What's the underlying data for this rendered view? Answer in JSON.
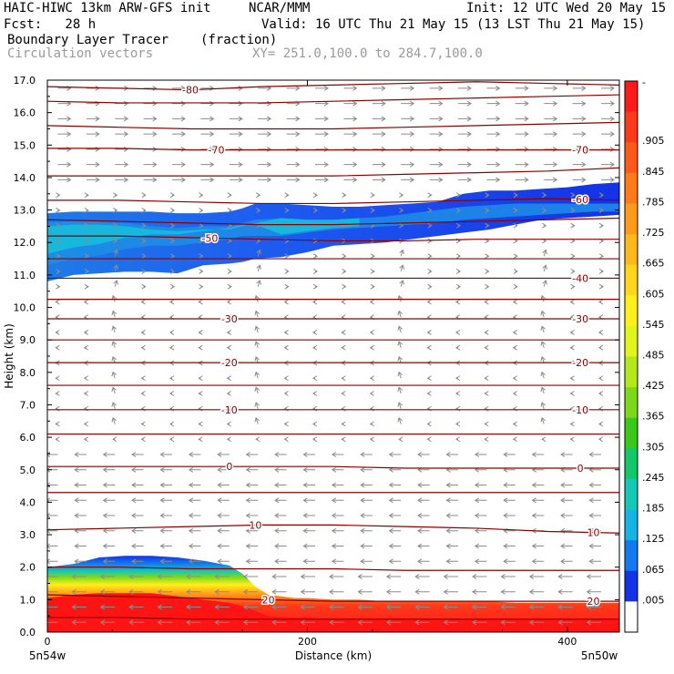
{
  "header": {
    "model": "HAIC-HIWC 13km ARW-GFS init",
    "org": "NCAR/MMM",
    "init": "Init: 12 UTC Wed 20 May 15",
    "fcst": "Fcst:   28 h",
    "valid": "Valid: 16 UTC Thu 21 May 15 (13 LST Thu 21 May 15)",
    "field1": "Boundary Layer Tracer",
    "field1_units": "(fraction)",
    "field2": "Circulation vectors",
    "xy": "XY= 251.0,100.0 to 284.7,100.0"
  },
  "chart_data": {
    "type": "heatmap",
    "ylabel": "Height (km)",
    "xlabel": "Distance (km)",
    "ylim": [
      0,
      17
    ],
    "xlim": [
      0,
      440
    ],
    "yticks": [
      "0.0",
      "1.0",
      "2.0",
      "3.0",
      "4.0",
      "5.0",
      "6.0",
      "7.0",
      "8.0",
      "9.0",
      "10.0",
      "11.0",
      "12.0",
      "13.0",
      "14.0",
      "15.0",
      "16.0",
      "17.0"
    ],
    "xticks": [
      "0",
      "200",
      "400"
    ],
    "x_end_labels": [
      "5n54w",
      "5n50w"
    ],
    "colorbar": {
      "labels": [
        "-",
        ".905",
        ".845",
        ".785",
        ".725",
        ".665",
        ".605",
        ".545",
        ".485",
        ".425",
        ".365",
        ".305",
        ".245",
        ".185",
        ".125",
        ".065",
        ".005"
      ],
      "colors": [
        "#ff1a1a",
        "#ff3a1a",
        "#ff5a1a",
        "#ff7a1a",
        "#ff9a1a",
        "#ffb91a",
        "#ffd71a",
        "#fff01a",
        "#e2f51a",
        "#b4e81a",
        "#7ed81a",
        "#3ac81a",
        "#14c86a",
        "#14c8b4",
        "#14b4e6",
        "#1478f0",
        "#1432e6",
        "#ffffff"
      ]
    },
    "contours": {
      "color": "#8b0000",
      "lines": [
        {
          "label": "-80",
          "z": [
            16.8,
            16.75,
            16.7,
            16.8,
            16.85,
            16.9,
            16.95,
            16.9,
            16.85
          ]
        },
        {
          "label": "",
          "z": [
            16.35,
            16.3,
            16.3,
            16.3,
            16.35,
            16.4,
            16.45,
            16.5,
            16.55
          ]
        },
        {
          "label": "",
          "z": [
            15.6,
            15.55,
            15.5,
            15.5,
            15.5,
            15.55,
            15.6,
            15.65,
            15.7
          ]
        },
        {
          "label": "-70",
          "z": [
            14.9,
            14.9,
            14.85,
            14.85,
            14.85,
            14.85,
            14.85,
            14.85,
            14.85
          ]
        },
        {
          "label": "",
          "z": [
            14.05,
            14.05,
            14.05,
            14.05,
            14.05,
            14.1,
            14.15,
            14.2,
            14.3
          ]
        },
        {
          "label": "-60",
          "z": [
            13.3,
            13.3,
            13.25,
            13.2,
            13.2,
            13.25,
            13.3,
            13.35,
            13.3
          ]
        },
        {
          "label": "",
          "z": [
            12.7,
            12.65,
            12.6,
            12.55,
            12.55,
            12.6,
            12.65,
            12.7,
            12.75
          ]
        },
        {
          "label": "-50",
          "z": [
            12.2,
            12.2,
            12.15,
            12.1,
            12.05,
            12.05,
            12.1,
            12.1,
            12.1
          ]
        },
        {
          "label": "",
          "z": [
            11.5,
            11.5,
            11.5,
            11.5,
            11.5,
            11.5,
            11.5,
            11.5,
            11.5
          ]
        },
        {
          "label": "-40",
          "z": [
            10.9,
            10.9,
            10.9,
            10.9,
            10.9,
            10.9,
            10.9,
            10.9,
            10.9
          ]
        },
        {
          "label": "",
          "z": [
            10.25,
            10.25,
            10.25,
            10.25,
            10.25,
            10.25,
            10.25,
            10.25,
            10.25
          ]
        },
        {
          "label": "-30",
          "z": [
            9.65,
            9.65,
            9.65,
            9.65,
            9.65,
            9.65,
            9.65,
            9.65,
            9.65
          ]
        },
        {
          "label": "",
          "z": [
            9.0,
            9.0,
            9.0,
            9.0,
            9.0,
            9.0,
            9.0,
            9.0,
            9.0
          ]
        },
        {
          "label": "-20",
          "z": [
            8.3,
            8.3,
            8.3,
            8.3,
            8.3,
            8.3,
            8.3,
            8.3,
            8.3
          ]
        },
        {
          "label": "",
          "z": [
            7.6,
            7.6,
            7.6,
            7.6,
            7.6,
            7.6,
            7.6,
            7.6,
            7.6
          ]
        },
        {
          "label": "-10",
          "z": [
            6.85,
            6.85,
            6.85,
            6.85,
            6.85,
            6.85,
            6.85,
            6.85,
            6.85
          ]
        },
        {
          "label": "",
          "z": [
            6.1,
            6.1,
            6.1,
            6.1,
            6.1,
            6.1,
            6.1,
            6.1,
            6.1
          ]
        },
        {
          "label": "0",
          "z": [
            5.1,
            5.1,
            5.1,
            5.1,
            5.1,
            5.05,
            5.05,
            5.05,
            5.05
          ]
        },
        {
          "label": "",
          "z": [
            4.3,
            4.3,
            4.3,
            4.3,
            4.3,
            4.3,
            4.3,
            4.3,
            4.3
          ]
        },
        {
          "label": "10",
          "z": [
            3.15,
            3.2,
            3.25,
            3.3,
            3.3,
            3.25,
            3.2,
            3.1,
            3.05
          ]
        },
        {
          "label": "",
          "z": [
            2.0,
            2.0,
            1.95,
            1.95,
            1.95,
            1.9,
            1.9,
            1.9,
            1.9
          ]
        },
        {
          "label": "20",
          "z": [
            1.15,
            1.1,
            1.05,
            1.0,
            0.95,
            0.95,
            0.95,
            0.95,
            0.95
          ]
        },
        {
          "label": "",
          "z": [
            0.45,
            0.45,
            0.4,
            0.4,
            0.4,
            0.4,
            0.4,
            0.4,
            0.4
          ]
        }
      ]
    },
    "label_x": {
      "-80": 110,
      "-70": 130,
      "-60": 410,
      "-50": 125,
      "-40": 410,
      "-30": 140,
      "-20": 140,
      "-10": 140,
      "0": 140,
      "10": 160,
      "20": 170
    },
    "label_x_right": {
      "-70": 410,
      "-30": 410,
      "-20": 410,
      "-10": 410,
      "0": 410,
      "10": 420,
      "20": 420
    },
    "tracer_layers": {
      "upper": {
        "x": [
          0,
          20,
          40,
          60,
          80,
          100,
          120,
          140,
          150,
          160,
          180,
          200,
          220,
          240,
          260,
          280,
          300,
          320,
          340,
          360,
          380,
          400,
          420,
          440
        ],
        "top": [
          12.9,
          12.95,
          12.95,
          12.95,
          12.95,
          12.9,
          12.9,
          12.95,
          13.05,
          13.2,
          13.2,
          13.15,
          13.1,
          13.1,
          13.15,
          13.2,
          13.25,
          13.5,
          13.6,
          13.6,
          13.65,
          13.7,
          13.8,
          13.85
        ],
        "bottom": [
          10.8,
          11.0,
          11.05,
          11.1,
          11.1,
          11.05,
          11.3,
          11.35,
          11.4,
          11.5,
          11.55,
          11.7,
          11.9,
          11.95,
          12.0,
          12.1,
          12.2,
          12.3,
          12.4,
          12.55,
          12.7,
          12.75,
          12.8,
          12.85
        ],
        "core_top": [
          12.6,
          12.65,
          12.65,
          12.6,
          12.5,
          12.45,
          12.5,
          12.5,
          12.6,
          12.7,
          12.75,
          12.7,
          12.7,
          12.75,
          12.8,
          12.9,
          13.0,
          13.1,
          13.15,
          13.2,
          13.2,
          13.2,
          13.2,
          13.2
        ],
        "core_bottom": [
          11.3,
          11.5,
          11.6,
          11.8,
          11.9,
          11.9,
          12.0,
          12.1,
          12.2,
          12.2,
          12.2,
          12.3,
          12.4,
          12.45,
          12.5,
          12.55,
          12.6,
          12.7,
          12.75,
          12.8,
          12.85,
          12.9,
          12.95,
          12.95
        ]
      },
      "lower": {
        "x": [
          0,
          20,
          40,
          60,
          80,
          100,
          120,
          140,
          150,
          160,
          170,
          180,
          190,
          200,
          220,
          240,
          260,
          280,
          300,
          320,
          340,
          360,
          380,
          400,
          420,
          440
        ],
        "top": [
          2.0,
          2.1,
          2.3,
          2.35,
          2.35,
          2.3,
          2.2,
          2.05,
          1.8,
          1.4,
          1.15,
          1.1,
          1.05,
          1.05,
          1.0,
          1.0,
          0.95,
          0.95,
          0.95,
          0.95,
          0.95,
          0.9,
          0.9,
          0.9,
          0.9,
          0.9
        ],
        "red_top": [
          1.05,
          1.15,
          1.2,
          1.2,
          1.2,
          1.1,
          1.0,
          0.9,
          0.8,
          0.65,
          0.5,
          0.45,
          0.45,
          0.45,
          0.4,
          0.4,
          0.4,
          0.4,
          0.4,
          0.4,
          0.4,
          0.4,
          0.4,
          0.4,
          0.4,
          0.4
        ]
      }
    }
  }
}
